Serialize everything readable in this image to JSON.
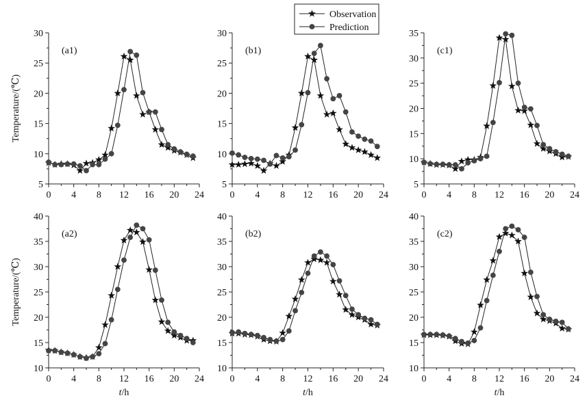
{
  "legend": {
    "items": [
      {
        "label": "Observation",
        "marker": "star"
      },
      {
        "label": "Prediction",
        "marker": "circle"
      }
    ]
  },
  "chart_data": [
    {
      "type": "line",
      "label": "(a1)",
      "xlabel": "",
      "ylabel": "Temperature/(℃)",
      "xlim": [
        0,
        24
      ],
      "ylim": [
        5,
        30
      ],
      "xticks": [
        0,
        4,
        8,
        12,
        16,
        20,
        24
      ],
      "yticks": [
        5,
        10,
        15,
        20,
        25,
        30
      ],
      "x": [
        0,
        1,
        2,
        3,
        4,
        5,
        6,
        7,
        8,
        9,
        10,
        11,
        12,
        13,
        14,
        15,
        16,
        17,
        18,
        19,
        20,
        21,
        22,
        23
      ],
      "series": [
        {
          "name": "Observation",
          "marker": "star",
          "values": [
            8.5,
            8.2,
            8.3,
            8.3,
            8.1,
            7.2,
            8.4,
            8.5,
            9.0,
            9.8,
            14.2,
            20.0,
            26.1,
            25.5,
            19.6,
            16.5,
            16.9,
            14.0,
            11.5,
            11.0,
            10.5,
            10.2,
            9.8,
            9.3
          ]
        },
        {
          "name": "Prediction",
          "marker": "circle",
          "values": [
            8.6,
            8.2,
            8.2,
            8.3,
            8.3,
            8.0,
            7.2,
            8.2,
            8.2,
            9.1,
            10.0,
            14.7,
            20.6,
            26.9,
            26.3,
            20.1,
            16.9,
            16.9,
            14.0,
            11.5,
            10.8,
            10.3,
            9.9,
            9.6
          ]
        }
      ]
    },
    {
      "type": "line",
      "label": "(b1)",
      "xlabel": "",
      "ylabel": "",
      "xlim": [
        0,
        24
      ],
      "ylim": [
        5,
        30
      ],
      "xticks": [
        0,
        4,
        8,
        12,
        16,
        20,
        24
      ],
      "yticks": [
        5,
        10,
        15,
        20,
        25,
        30
      ],
      "x": [
        0,
        1,
        2,
        3,
        4,
        5,
        6,
        7,
        8,
        9,
        10,
        11,
        12,
        13,
        14,
        15,
        16,
        17,
        18,
        19,
        20,
        21,
        22,
        23
      ],
      "series": [
        {
          "name": "Observation",
          "marker": "star",
          "values": [
            8.2,
            8.2,
            8.3,
            8.4,
            8.0,
            7.2,
            8.4,
            8.0,
            8.7,
            9.8,
            14.3,
            20.0,
            26.1,
            25.5,
            19.6,
            16.5,
            16.7,
            14.0,
            11.6,
            11.0,
            10.6,
            10.3,
            9.8,
            9.3
          ]
        },
        {
          "name": "Prediction",
          "marker": "circle",
          "values": [
            10.1,
            9.8,
            9.4,
            9.2,
            9.1,
            8.9,
            8.3,
            9.7,
            9.3,
            9.5,
            10.6,
            14.8,
            20.1,
            26.6,
            27.9,
            22.4,
            19.1,
            19.6,
            16.9,
            13.6,
            12.9,
            12.4,
            12.1,
            11.2
          ]
        }
      ]
    },
    {
      "type": "line",
      "label": "(c1)",
      "xlabel": "",
      "ylabel": "",
      "xlim": [
        0,
        24
      ],
      "ylim": [
        5,
        35
      ],
      "xticks": [
        0,
        4,
        8,
        12,
        16,
        20,
        24
      ],
      "yticks": [
        5,
        10,
        15,
        20,
        25,
        30,
        35
      ],
      "x": [
        0,
        1,
        2,
        3,
        4,
        5,
        6,
        7,
        8,
        9,
        10,
        11,
        12,
        13,
        14,
        15,
        16,
        17,
        18,
        19,
        20,
        21,
        22,
        23
      ],
      "series": [
        {
          "name": "Observation",
          "marker": "star",
          "values": [
            9.3,
            9.0,
            8.8,
            8.8,
            8.7,
            8.0,
            9.5,
            9.8,
            9.8,
            10.3,
            16.5,
            24.5,
            34.0,
            33.7,
            24.4,
            19.6,
            19.5,
            16.7,
            13.0,
            12.0,
            11.5,
            11.0,
            10.3,
            10.4
          ]
        },
        {
          "name": "Prediction",
          "marker": "circle",
          "values": [
            9.3,
            9.0,
            8.9,
            8.9,
            8.8,
            8.8,
            8.0,
            9.2,
            9.6,
            10.0,
            10.5,
            17.2,
            25.1,
            34.8,
            34.5,
            25.0,
            20.2,
            19.9,
            16.6,
            12.8,
            12.0,
            11.4,
            10.9,
            10.5
          ]
        }
      ]
    },
    {
      "type": "line",
      "label": "(a2)",
      "xlabel": "t/h",
      "ylabel": "Temperature/(℃)",
      "xlim": [
        0,
        24
      ],
      "ylim": [
        10,
        40
      ],
      "xticks": [
        0,
        4,
        8,
        12,
        16,
        20,
        24
      ],
      "yticks": [
        10,
        15,
        20,
        25,
        30,
        35,
        40
      ],
      "x": [
        0,
        1,
        2,
        3,
        4,
        5,
        6,
        7,
        8,
        9,
        10,
        11,
        12,
        13,
        14,
        15,
        16,
        17,
        18,
        19,
        20,
        21,
        22,
        23
      ],
      "series": [
        {
          "name": "Observation",
          "marker": "star",
          "values": [
            13.5,
            13.4,
            13.1,
            12.9,
            12.6,
            12.2,
            12.0,
            12.2,
            14.0,
            18.5,
            24.3,
            30.0,
            35.2,
            37.2,
            36.8,
            34.9,
            29.4,
            23.4,
            19.1,
            17.3,
            16.4,
            16.0,
            15.4,
            15.4
          ]
        },
        {
          "name": "Prediction",
          "marker": "circle",
          "values": [
            13.4,
            13.4,
            13.1,
            12.9,
            12.6,
            12.2,
            11.9,
            12.2,
            12.8,
            14.8,
            19.5,
            25.5,
            31.3,
            35.8,
            38.2,
            37.5,
            35.3,
            29.3,
            23.4,
            19.0,
            17.1,
            16.4,
            15.8,
            15.0
          ]
        }
      ]
    },
    {
      "type": "line",
      "label": "(b2)",
      "xlabel": "t/h",
      "ylabel": "",
      "xlim": [
        0,
        24
      ],
      "ylim": [
        10,
        40
      ],
      "xticks": [
        0,
        4,
        8,
        12,
        16,
        20,
        24
      ],
      "yticks": [
        10,
        15,
        20,
        25,
        30,
        35,
        40
      ],
      "x": [
        0,
        1,
        2,
        3,
        4,
        5,
        6,
        7,
        8,
        9,
        10,
        11,
        12,
        13,
        14,
        15,
        16,
        17,
        18,
        19,
        20,
        21,
        22,
        23
      ],
      "series": [
        {
          "name": "Observation",
          "marker": "star",
          "values": [
            16.8,
            16.8,
            16.6,
            16.5,
            16.2,
            15.6,
            15.3,
            15.2,
            16.9,
            20.2,
            23.6,
            27.4,
            30.8,
            31.5,
            31.3,
            30.8,
            27.1,
            24.5,
            21.5,
            20.5,
            20.0,
            19.5,
            18.6,
            18.4
          ]
        },
        {
          "name": "Prediction",
          "marker": "circle",
          "values": [
            17.0,
            17.1,
            16.8,
            16.6,
            16.4,
            16.0,
            15.6,
            15.3,
            15.6,
            17.3,
            21.3,
            24.9,
            28.7,
            32.1,
            32.9,
            32.1,
            30.4,
            27.2,
            24.3,
            21.6,
            20.5,
            19.8,
            19.5,
            18.6
          ]
        }
      ]
    },
    {
      "type": "line",
      "label": "(c2)",
      "xlabel": "t/h",
      "ylabel": "",
      "xlim": [
        0,
        24
      ],
      "ylim": [
        10,
        40
      ],
      "xticks": [
        0,
        4,
        8,
        12,
        16,
        20,
        24
      ],
      "yticks": [
        10,
        15,
        20,
        25,
        30,
        35,
        40
      ],
      "x": [
        0,
        1,
        2,
        3,
        4,
        5,
        6,
        7,
        8,
        9,
        10,
        11,
        12,
        13,
        14,
        15,
        16,
        17,
        18,
        19,
        20,
        21,
        22,
        23
      ],
      "series": [
        {
          "name": "Observation",
          "marker": "star",
          "values": [
            16.5,
            16.5,
            16.5,
            16.4,
            16.2,
            15.3,
            14.8,
            14.7,
            17.1,
            22.4,
            27.4,
            31.2,
            35.9,
            36.6,
            36.2,
            35.0,
            28.7,
            24.0,
            20.8,
            19.6,
            19.3,
            18.8,
            17.8,
            17.6
          ]
        },
        {
          "name": "Prediction",
          "marker": "circle",
          "values": [
            16.6,
            16.6,
            16.6,
            16.5,
            16.3,
            15.8,
            15.2,
            14.9,
            15.4,
            17.9,
            23.3,
            28.3,
            33.0,
            37.5,
            38.0,
            37.3,
            35.8,
            28.9,
            24.1,
            20.5,
            19.6,
            19.2,
            19.0,
            17.7
          ]
        }
      ]
    }
  ]
}
